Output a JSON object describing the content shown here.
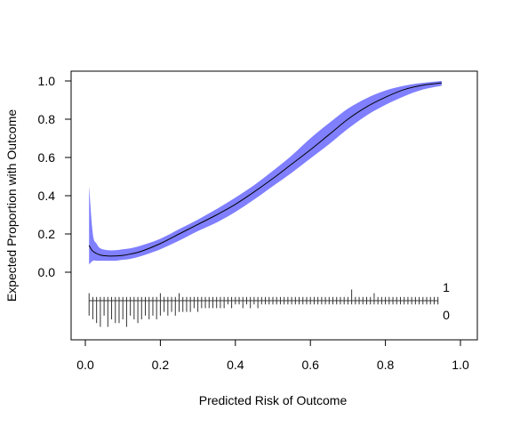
{
  "chart_data": {
    "type": "line",
    "title": "",
    "xlabel": "Predicted Risk of Outcome",
    "ylabel": "Expected Proportion with Outcome",
    "xlim": [
      0.0,
      1.0
    ],
    "ylim": [
      0.0,
      1.0
    ],
    "x_ticks": [
      "0.0",
      "0.2",
      "0.4",
      "0.6",
      "0.8",
      "1.0"
    ],
    "y_ticks": [
      "0.0",
      "0.2",
      "0.4",
      "0.6",
      "0.8",
      "1.0"
    ],
    "grid": false,
    "colors": {
      "band": "#7f7fff",
      "line": "#000000",
      "spikes": "#333333"
    },
    "spike_labels": {
      "top": "1",
      "bottom": "0"
    },
    "series": [
      {
        "type": "line",
        "x": [
          0.01,
          0.02,
          0.04,
          0.06,
          0.08,
          0.1,
          0.12,
          0.15,
          0.2,
          0.25,
          0.3,
          0.35,
          0.4,
          0.45,
          0.5,
          0.55,
          0.6,
          0.65,
          0.7,
          0.75,
          0.8,
          0.85,
          0.9,
          0.95
        ],
        "values": [
          0.14,
          0.11,
          0.09,
          0.085,
          0.085,
          0.088,
          0.095,
          0.11,
          0.15,
          0.2,
          0.25,
          0.3,
          0.355,
          0.42,
          0.49,
          0.565,
          0.64,
          0.72,
          0.8,
          0.865,
          0.915,
          0.955,
          0.978,
          0.99
        ]
      },
      {
        "type": "band-upper",
        "x": [
          0.01,
          0.02,
          0.03,
          0.04,
          0.06,
          0.08,
          0.1,
          0.12,
          0.15,
          0.2,
          0.25,
          0.3,
          0.35,
          0.4,
          0.45,
          0.5,
          0.55,
          0.6,
          0.65,
          0.7,
          0.75,
          0.8,
          0.85,
          0.9,
          0.95
        ],
        "values": [
          0.45,
          0.2,
          0.15,
          0.125,
          0.115,
          0.115,
          0.12,
          0.125,
          0.14,
          0.175,
          0.225,
          0.275,
          0.33,
          0.39,
          0.455,
          0.53,
          0.61,
          0.7,
          0.78,
          0.855,
          0.91,
          0.95,
          0.975,
          0.99,
          1.0
        ]
      },
      {
        "type": "band-lower",
        "x": [
          0.01,
          0.02,
          0.03,
          0.04,
          0.06,
          0.08,
          0.1,
          0.12,
          0.15,
          0.2,
          0.25,
          0.3,
          0.35,
          0.4,
          0.45,
          0.5,
          0.55,
          0.6,
          0.65,
          0.7,
          0.75,
          0.8,
          0.85,
          0.9,
          0.95
        ],
        "values": [
          0.04,
          0.06,
          0.06,
          0.06,
          0.06,
          0.06,
          0.065,
          0.07,
          0.085,
          0.12,
          0.165,
          0.215,
          0.26,
          0.315,
          0.38,
          0.45,
          0.52,
          0.595,
          0.67,
          0.75,
          0.82,
          0.875,
          0.92,
          0.955,
          0.975
        ]
      }
    ],
    "spike_data": {
      "bin_x": [
        0.01,
        0.02,
        0.03,
        0.04,
        0.05,
        0.06,
        0.07,
        0.08,
        0.09,
        0.1,
        0.11,
        0.12,
        0.13,
        0.14,
        0.15,
        0.16,
        0.17,
        0.18,
        0.19,
        0.2,
        0.21,
        0.22,
        0.23,
        0.24,
        0.25,
        0.26,
        0.27,
        0.28,
        0.29,
        0.3,
        0.31,
        0.32,
        0.33,
        0.34,
        0.35,
        0.36,
        0.37,
        0.38,
        0.39,
        0.4,
        0.41,
        0.42,
        0.43,
        0.44,
        0.45,
        0.46,
        0.47,
        0.48,
        0.49,
        0.5,
        0.51,
        0.52,
        0.53,
        0.54,
        0.55,
        0.56,
        0.57,
        0.58,
        0.59,
        0.6,
        0.61,
        0.62,
        0.63,
        0.64,
        0.65,
        0.66,
        0.67,
        0.68,
        0.69,
        0.7,
        0.71,
        0.72,
        0.73,
        0.74,
        0.75,
        0.76,
        0.77,
        0.78,
        0.79,
        0.8,
        0.81,
        0.82,
        0.83,
        0.84,
        0.85,
        0.86,
        0.87,
        0.88,
        0.89,
        0.9,
        0.91,
        0.92,
        0.93,
        0.94
      ],
      "outcome_1_counts": [
        2,
        1,
        1,
        1,
        1,
        1,
        1,
        1,
        1,
        1,
        1,
        1,
        1,
        1,
        1,
        1,
        1,
        1,
        1,
        2,
        1,
        1,
        1,
        1,
        2,
        1,
        1,
        1,
        1,
        1,
        1,
        1,
        1,
        1,
        1,
        1,
        1,
        1,
        1,
        1,
        1,
        1,
        1,
        1,
        1,
        1,
        1,
        1,
        1,
        1,
        1,
        1,
        1,
        1,
        1,
        1,
        1,
        1,
        1,
        1,
        1,
        1,
        1,
        1,
        1,
        1,
        1,
        1,
        1,
        1,
        3,
        1,
        1,
        1,
        1,
        1,
        2,
        1,
        1,
        1,
        1,
        1,
        1,
        1,
        1,
        1,
        1,
        1,
        1,
        1,
        1,
        1,
        1,
        1
      ],
      "outcome_0_counts": [
        4,
        5,
        6,
        7,
        4,
        7,
        5,
        6,
        6,
        5,
        7,
        4,
        5,
        6,
        5,
        4,
        5,
        4,
        5,
        4,
        3,
        4,
        3,
        4,
        3,
        3,
        3,
        3,
        2,
        3,
        2,
        2,
        2,
        2,
        2,
        2,
        2,
        1,
        2,
        1,
        1,
        2,
        1,
        2,
        1,
        2,
        1,
        1,
        1,
        1,
        1,
        1,
        1,
        1,
        1,
        1,
        1,
        1,
        1,
        1,
        1,
        1,
        1,
        1,
        1,
        1,
        1,
        1,
        1,
        1,
        1,
        1,
        1,
        1,
        1,
        1,
        1,
        1,
        1,
        1,
        1,
        1,
        1,
        1,
        1,
        1,
        1,
        1,
        1,
        1,
        1,
        1,
        1,
        1
      ]
    }
  }
}
